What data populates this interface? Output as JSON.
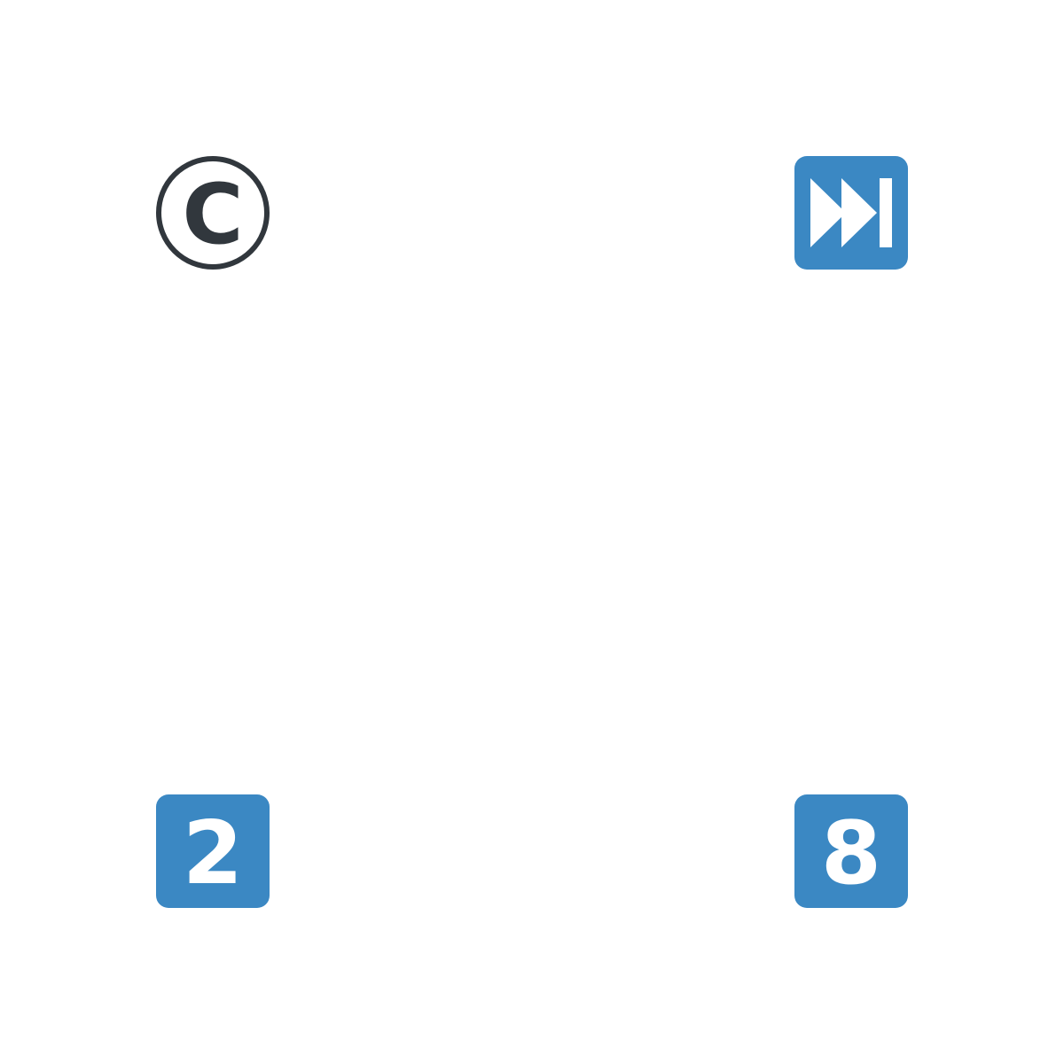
{
  "emojis": {
    "copyright": {
      "icon": "copyright-icon",
      "glyph": "C",
      "color": "#31373d"
    },
    "next_track": {
      "icon": "next-track-icon",
      "bg": "#3b88c3",
      "fg": "#ffffff"
    },
    "keycap_2": {
      "icon": "keycap-2-icon",
      "label": "2",
      "bg": "#3b88c3"
    },
    "keycap_8": {
      "icon": "keycap-8-icon",
      "label": "8",
      "bg": "#3b88c3"
    }
  }
}
